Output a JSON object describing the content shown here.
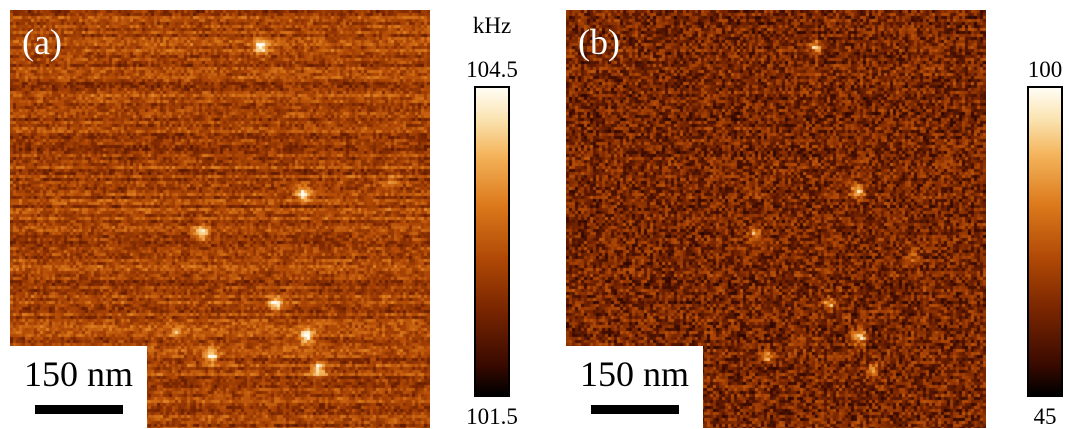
{
  "panel_a": {
    "label": "(a)",
    "scale_bar": "150 nm",
    "colorbar": {
      "unit": "kHz",
      "max": "104.5",
      "min": "101.5"
    }
  },
  "panel_b": {
    "label": "(b)",
    "scale_bar": "150 nm",
    "colorbar": {
      "max": "100",
      "min": "45"
    }
  },
  "colors": {
    "colormap_dark": "#000000",
    "colormap_mid": "#b24a06",
    "colormap_bright": "#fffdf4"
  }
}
